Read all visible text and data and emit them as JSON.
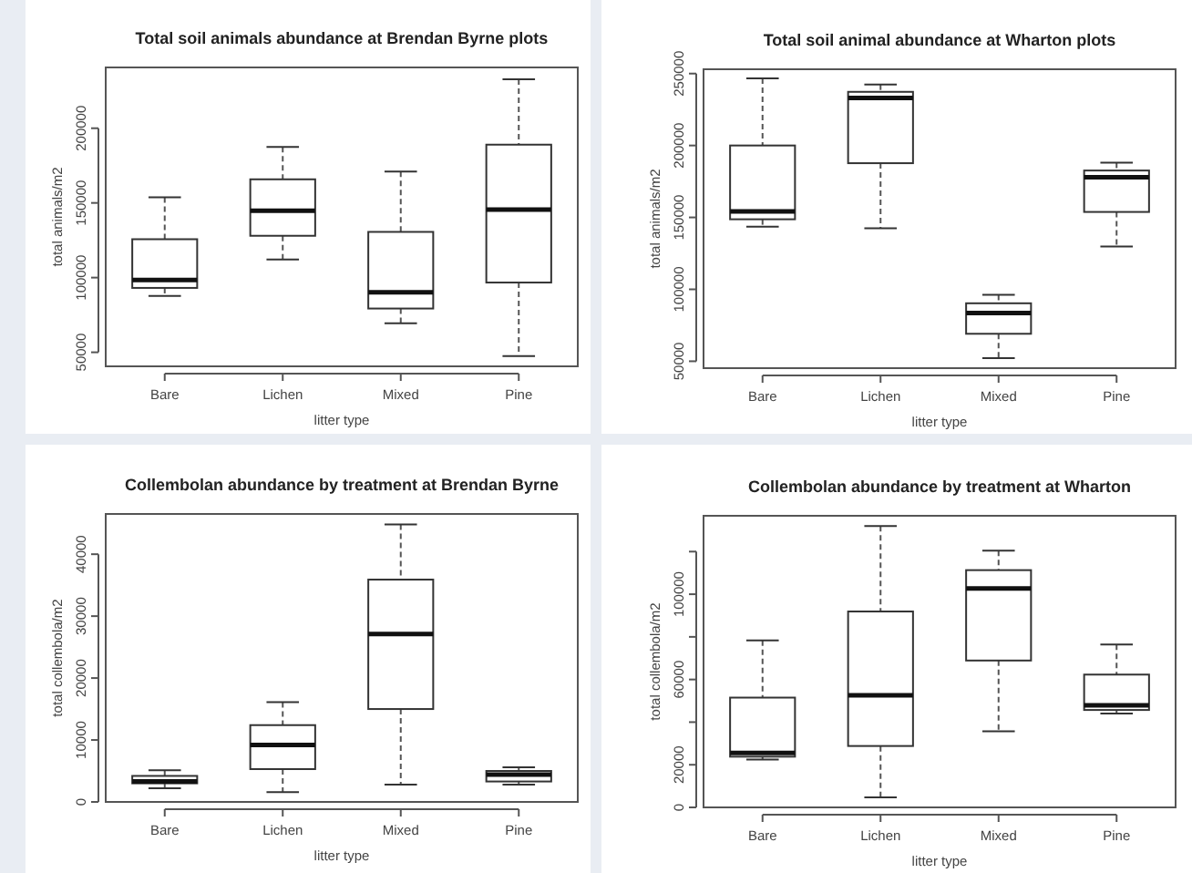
{
  "chart_data": [
    {
      "type": "box",
      "title": "Total soil animals abundance at Brendan Byrne plots",
      "xlabel": "litter type",
      "ylabel": "total animals/m2",
      "categories": [
        "Bare",
        "Lichen",
        "Mixed",
        "Pine"
      ],
      "ylim": [
        40600,
        240700
      ],
      "yticks": [
        50000,
        100000,
        150000,
        200000
      ],
      "boxes": [
        {
          "low": 87800,
          "q1": 93100,
          "median": 98400,
          "q3": 125700,
          "high": 153700
        },
        {
          "low": 112100,
          "q1": 128000,
          "median": 144700,
          "q3": 165800,
          "high": 187400
        },
        {
          "low": 69500,
          "q1": 79300,
          "median": 90200,
          "q3": 130600,
          "high": 171000
        },
        {
          "low": 47500,
          "q1": 96700,
          "median": 145600,
          "q3": 189000,
          "high": 232700
        }
      ]
    },
    {
      "type": "box",
      "title": "Total soil animal abundance at Wharton plots",
      "xlabel": "litter type",
      "ylabel": "total animals/m2",
      "categories": [
        "Bare",
        "Lichen",
        "Mixed",
        "Pine"
      ],
      "ylim": [
        45200,
        253000
      ],
      "yticks": [
        50000,
        100000,
        150000,
        200000,
        250000
      ],
      "boxes": [
        {
          "low": 143600,
          "q1": 148700,
          "median": 154200,
          "q3": 200000,
          "high": 246600
        },
        {
          "low": 142400,
          "q1": 187700,
          "median": 233100,
          "q3": 237300,
          "high": 242400
        },
        {
          "low": 52100,
          "q1": 69100,
          "median": 83500,
          "q3": 90300,
          "high": 96200
        },
        {
          "low": 129700,
          "q1": 153800,
          "median": 178000,
          "q3": 182600,
          "high": 188100
        }
      ]
    },
    {
      "type": "box",
      "title": "Collembolan abundance by treatment at Brendan Byrne",
      "xlabel": "litter type",
      "ylabel": "total collembola/m2",
      "categories": [
        "Bare",
        "Lichen",
        "Mixed",
        "Pine"
      ],
      "ylim": [
        0,
        46500
      ],
      "yticks": [
        0,
        10000,
        20000,
        30000,
        40000
      ],
      "boxes": [
        {
          "low": 2200,
          "q1": 3000,
          "median": 3300,
          "q3": 4200,
          "high": 5100
        },
        {
          "low": 1600,
          "q1": 5300,
          "median": 9200,
          "q3": 12400,
          "high": 16100
        },
        {
          "low": 2800,
          "q1": 15000,
          "median": 27100,
          "q3": 35900,
          "high": 44800
        },
        {
          "low": 2800,
          "q1": 3300,
          "median": 4400,
          "q3": 5000,
          "high": 5600
        }
      ]
    },
    {
      "type": "box",
      "title": "Collembolan abundance by treatment at Wharton",
      "xlabel": "litter type",
      "ylabel": "total collembola/m2",
      "categories": [
        "Bare",
        "Lichen",
        "Mixed",
        "Pine"
      ],
      "ylim": [
        0,
        136800
      ],
      "yticks": [
        0,
        20000,
        {
          "value": 40000,
          "label": null
        },
        60000,
        {
          "value": 80000,
          "label": null
        },
        100000,
        {
          "value": 120000,
          "label": null
        }
      ],
      "boxes": [
        {
          "low": 22400,
          "q1": 23800,
          "median": 25500,
          "q3": 51500,
          "high": 78300
        },
        {
          "low": 4700,
          "q1": 28800,
          "median": 52600,
          "q3": 91900,
          "high": 132000
        },
        {
          "low": 35700,
          "q1": 68900,
          "median": 102700,
          "q3": 111300,
          "high": 120400
        },
        {
          "low": 44000,
          "q1": 45700,
          "median": 47900,
          "q3": 62300,
          "high": 76400
        }
      ]
    }
  ]
}
